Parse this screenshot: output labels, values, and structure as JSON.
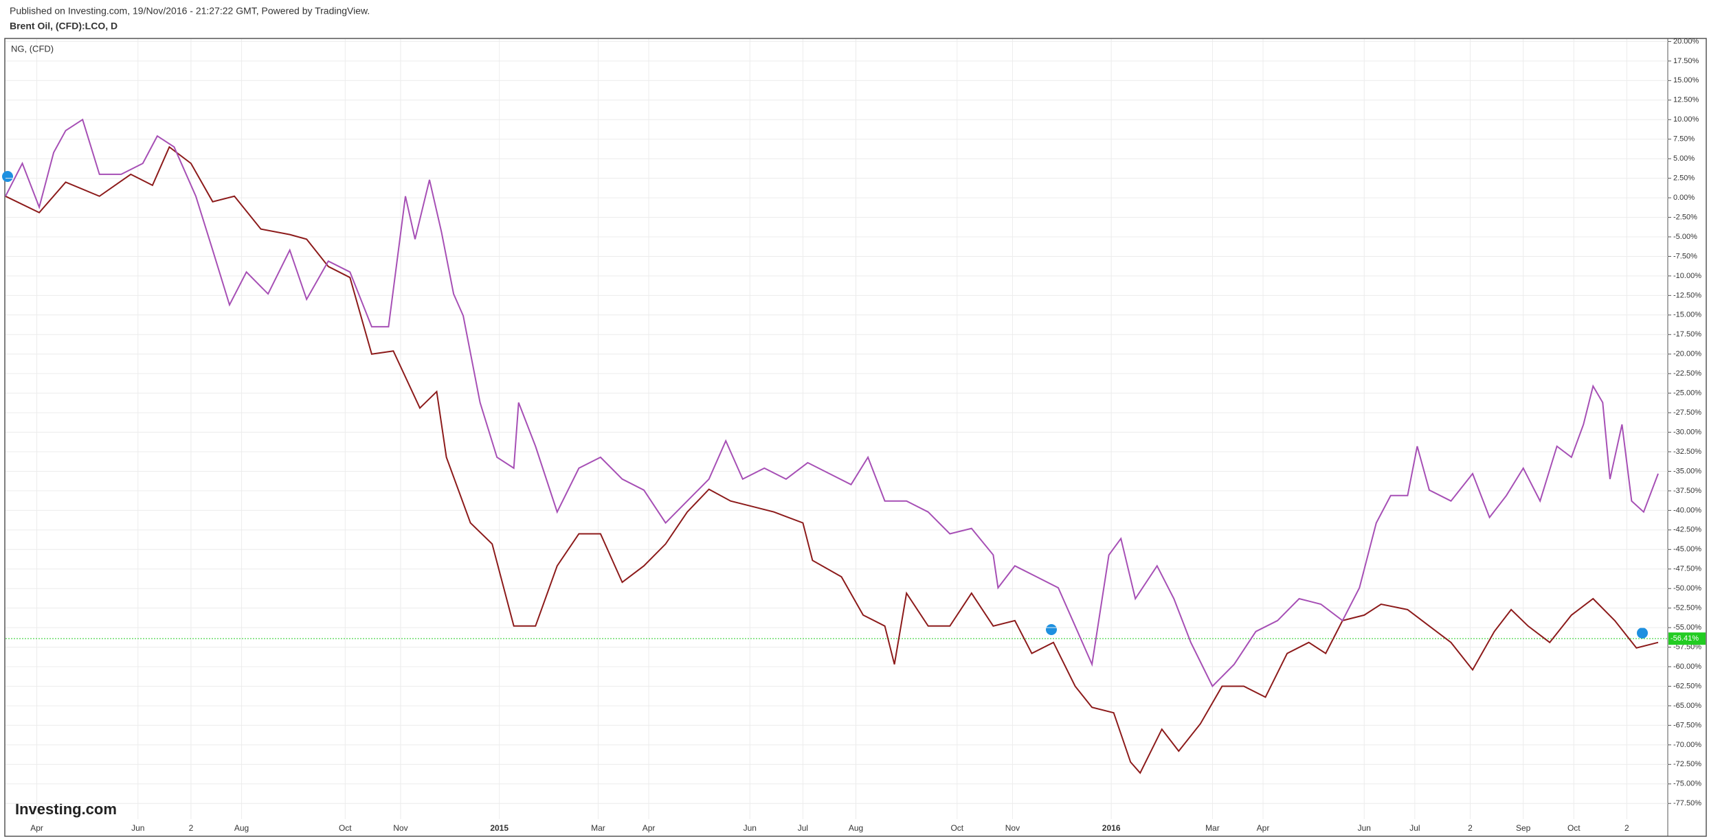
{
  "header": {
    "published": "Published on Investing.com, 19/Nov/2016 - 21:27:22 GMT, Powered by TradingView.",
    "symbol": "Brent Oil, (CFD):LCO, D"
  },
  "chart_data": {
    "type": "line",
    "watermark": "Investing.com",
    "xlim": [
      0,
      690
    ],
    "ylim": [
      -79.5,
      20.3
    ],
    "grid": true,
    "xticks": [
      {
        "value": 13,
        "label": "Apr"
      },
      {
        "value": 55,
        "label": "Jun"
      },
      {
        "value": 77,
        "label": "2"
      },
      {
        "value": 98,
        "label": "Aug"
      },
      {
        "value": 141,
        "label": "Oct"
      },
      {
        "value": 164,
        "label": "Nov"
      },
      {
        "value": 205,
        "label": "2015"
      },
      {
        "value": 246,
        "label": "Mar"
      },
      {
        "value": 267,
        "label": "Apr"
      },
      {
        "value": 309,
        "label": "Jun"
      },
      {
        "value": 331,
        "label": "Jul"
      },
      {
        "value": 353,
        "label": "Aug"
      },
      {
        "value": 395,
        "label": "Oct"
      },
      {
        "value": 418,
        "label": "Nov"
      },
      {
        "value": 459,
        "label": "2016"
      },
      {
        "value": 501,
        "label": "Mar"
      },
      {
        "value": 522,
        "label": "Apr"
      },
      {
        "value": 564,
        "label": "Jun"
      },
      {
        "value": 585,
        "label": "Jul"
      },
      {
        "value": 608,
        "label": "2"
      },
      {
        "value": 630,
        "label": "Sep"
      },
      {
        "value": 651,
        "label": "Oct"
      },
      {
        "value": 673,
        "label": "2"
      }
    ],
    "yticks": [
      {
        "value": 20,
        "label": "20.00%"
      },
      {
        "value": 17.5,
        "label": "17.50%"
      },
      {
        "value": 15,
        "label": "15.00%"
      },
      {
        "value": 12.5,
        "label": "12.50%"
      },
      {
        "value": 10,
        "label": "10.00%"
      },
      {
        "value": 7.5,
        "label": "7.50%"
      },
      {
        "value": 5,
        "label": "5.00%"
      },
      {
        "value": 2.5,
        "label": "2.50%"
      },
      {
        "value": 0,
        "label": "0.00%"
      },
      {
        "value": -2.5,
        "label": "-2.50%"
      },
      {
        "value": -5,
        "label": "-5.00%"
      },
      {
        "value": -7.5,
        "label": "-7.50%"
      },
      {
        "value": -10,
        "label": "-10.00%"
      },
      {
        "value": -12.5,
        "label": "-12.50%"
      },
      {
        "value": -15,
        "label": "-15.00%"
      },
      {
        "value": -17.5,
        "label": "-17.50%"
      },
      {
        "value": -20,
        "label": "-20.00%"
      },
      {
        "value": -22.5,
        "label": "-22.50%"
      },
      {
        "value": -25,
        "label": "-25.00%"
      },
      {
        "value": -27.5,
        "label": "-27.50%"
      },
      {
        "value": -30,
        "label": "-30.00%"
      },
      {
        "value": -32.5,
        "label": "-32.50%"
      },
      {
        "value": -35,
        "label": "-35.00%"
      },
      {
        "value": -37.5,
        "label": "-37.50%"
      },
      {
        "value": -40,
        "label": "-40.00%"
      },
      {
        "value": -42.5,
        "label": "-42.50%"
      },
      {
        "value": -45,
        "label": "-45.00%"
      },
      {
        "value": -47.5,
        "label": "-47.50%"
      },
      {
        "value": -50,
        "label": "-50.00%"
      },
      {
        "value": -52.5,
        "label": "-52.50%"
      },
      {
        "value": -55,
        "label": "-55.00%"
      },
      {
        "value": -57.5,
        "label": "-57.50%"
      },
      {
        "value": -60,
        "label": "-60.00%"
      },
      {
        "value": -62.5,
        "label": "-62.50%"
      },
      {
        "value": -65,
        "label": "-65.00%"
      },
      {
        "value": -67.5,
        "label": "-67.50%"
      },
      {
        "value": -70,
        "label": "-70.00%"
      },
      {
        "value": -72.5,
        "label": "-72.50%"
      },
      {
        "value": -75,
        "label": "-75.00%"
      },
      {
        "value": -77.5,
        "label": "-77.50%"
      }
    ],
    "current": {
      "value": -56.41,
      "label": "-56.41%",
      "color": "#22cc22"
    },
    "series": [
      {
        "color": "#8c1a1a",
        "x": [
          0,
          14,
          25,
          39,
          52,
          61,
          68,
          77,
          86,
          95,
          106,
          118,
          125,
          134,
          143,
          152,
          161,
          172,
          179,
          183,
          193,
          202,
          211,
          220,
          229,
          238,
          247,
          256,
          265,
          274,
          283,
          292,
          301,
          310,
          319,
          331,
          335,
          347,
          356,
          365,
          369,
          374,
          383,
          392,
          401,
          410,
          419,
          426,
          435,
          444,
          451,
          460,
          467,
          471,
          480,
          487,
          496,
          505,
          514,
          523,
          532,
          541,
          548,
          555,
          564,
          571,
          582,
          591,
          600,
          609,
          618,
          625,
          632,
          641,
          650,
          659,
          668,
          677,
          686
        ],
        "values": [
          0.2,
          -1.9,
          2,
          0.2,
          3,
          1.6,
          6.5,
          4.4,
          -0.5,
          0.2,
          -4,
          -4.7,
          -5.3,
          -8.8,
          -10.2,
          -20,
          -19.6,
          -26.9,
          -24.8,
          -33.2,
          -41.6,
          -44.3,
          -54.8,
          -54.8,
          -47.1,
          -43,
          -43,
          -49.2,
          -47.1,
          -44.3,
          -40.2,
          -37.3,
          -38.8,
          -39.5,
          -40.2,
          -41.6,
          -46.4,
          -48.5,
          -53.4,
          -54.8,
          -59.7,
          -50.6,
          -54.8,
          -54.8,
          -50.6,
          -54.8,
          -54.1,
          -58.3,
          -56.9,
          -62.5,
          -65.2,
          -65.9,
          -72.2,
          -73.6,
          -68,
          -70.8,
          -67.3,
          -62.5,
          -62.5,
          -63.9,
          -58.3,
          -56.9,
          -58.3,
          -54.1,
          -53.4,
          -52,
          -52.7,
          -54.8,
          -56.9,
          -60.4,
          -55.5,
          -52.7,
          -54.8,
          -56.9,
          -53.4,
          -51.3,
          -54.1,
          -57.6,
          -56.9
        ]
      },
      {
        "name": "NG,  (CFD)",
        "color": "#a64fb5",
        "x": [
          0,
          7,
          14,
          20,
          25,
          32,
          39,
          48,
          57,
          63,
          70,
          79,
          86,
          93,
          100,
          109,
          118,
          125,
          134,
          143,
          152,
          159,
          166,
          170,
          176,
          181,
          186,
          190,
          197,
          204,
          211,
          213,
          220,
          229,
          238,
          247,
          256,
          265,
          274,
          283,
          292,
          299,
          306,
          315,
          324,
          333,
          342,
          351,
          358,
          365,
          374,
          383,
          392,
          401,
          410,
          412,
          419,
          428,
          437,
          444,
          451,
          458,
          463,
          469,
          478,
          485,
          492,
          501,
          510,
          519,
          528,
          537,
          546,
          555,
          562,
          569,
          575,
          582,
          586,
          591,
          600,
          609,
          616,
          623,
          630,
          637,
          644,
          650,
          655,
          659,
          663,
          666,
          671,
          675,
          680,
          686
        ],
        "values": [
          0.2,
          4.4,
          -1.2,
          5.8,
          8.6,
          10,
          3,
          3,
          4.4,
          7.9,
          6.5,
          0.2,
          -6.7,
          -13.7,
          -9.5,
          -12.3,
          -6.7,
          -13,
          -8.1,
          -9.5,
          -16.5,
          -16.5,
          0.2,
          -5.3,
          2.3,
          -4.4,
          -12.3,
          -15.1,
          -26.2,
          -33.2,
          -34.6,
          -26.2,
          -31.8,
          -40.2,
          -34.6,
          -33.2,
          -36,
          -37.4,
          -41.6,
          -38.8,
          -36,
          -31.1,
          -36,
          -34.6,
          -36,
          -33.9,
          -35.3,
          -36.7,
          -33.2,
          -38.8,
          -38.8,
          -40.2,
          -43,
          -42.3,
          -45.7,
          -49.9,
          -47.1,
          -48.5,
          -49.9,
          -54.8,
          -59.7,
          -45.7,
          -43.6,
          -51.3,
          -47.1,
          -51.3,
          -56.9,
          -62.5,
          -59.7,
          -55.5,
          -54.1,
          -51.3,
          -52,
          -54.1,
          -49.9,
          -41.6,
          -38.1,
          -38.1,
          -31.8,
          -37.4,
          -38.8,
          -35.3,
          -40.9,
          -38.1,
          -34.6,
          -38.8,
          -31.8,
          -33.2,
          -29,
          -24.1,
          -26.2,
          -36,
          -29,
          -38.8,
          -40.2,
          -35.3
        ]
      }
    ]
  }
}
